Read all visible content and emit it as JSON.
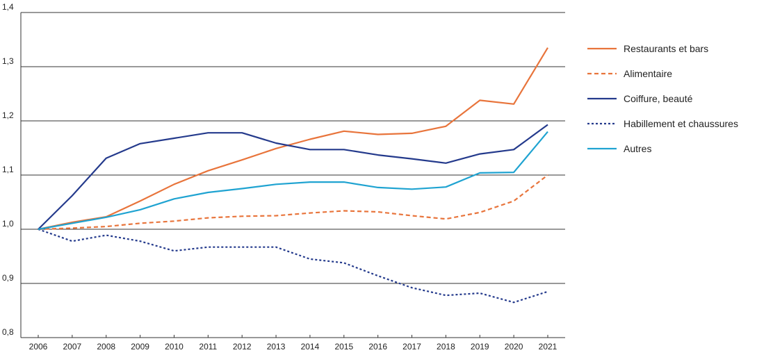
{
  "chart_data": {
    "type": "line",
    "title": "",
    "xlabel": "",
    "ylabel": "",
    "x": [
      "2006",
      "2007",
      "2008",
      "2009",
      "2010",
      "2011",
      "2012",
      "2013",
      "2014",
      "2015",
      "2016",
      "2017",
      "2018",
      "2019",
      "2020",
      "2021"
    ],
    "ylim": [
      0.8,
      1.4
    ],
    "yticks": [
      0.8,
      0.9,
      1.0,
      1.1,
      1.2,
      1.3,
      1.4
    ],
    "ytick_labels": [
      "0,8",
      "0,9",
      "1,0",
      "1,1",
      "1,2",
      "1,3",
      "1,4"
    ],
    "grid": "horizontal",
    "legend_position": "right",
    "series": [
      {
        "name": "Restaurants et bars",
        "color": "#e8743b",
        "dash": "solid",
        "values": [
          1.0,
          1.013,
          1.023,
          1.052,
          1.083,
          1.108,
          1.128,
          1.149,
          1.166,
          1.181,
          1.175,
          1.177,
          1.19,
          1.238,
          1.231,
          1.335
        ]
      },
      {
        "name": "Alimentaire",
        "color": "#e8743b",
        "dash": "dashed",
        "values": [
          1.0,
          1.002,
          1.005,
          1.011,
          1.015,
          1.021,
          1.024,
          1.025,
          1.03,
          1.034,
          1.032,
          1.025,
          1.019,
          1.031,
          1.052,
          1.1
        ]
      },
      {
        "name": "Coiffure, beauté",
        "color": "#243a8c",
        "dash": "solid",
        "values": [
          1.0,
          1.062,
          1.131,
          1.158,
          1.168,
          1.178,
          1.178,
          1.159,
          1.147,
          1.147,
          1.137,
          1.13,
          1.122,
          1.139,
          1.147,
          1.193
        ]
      },
      {
        "name": "Habillement et chaussures",
        "color": "#243a8c",
        "dash": "dotted",
        "values": [
          1.0,
          0.978,
          0.989,
          0.978,
          0.96,
          0.967,
          0.967,
          0.967,
          0.945,
          0.938,
          0.914,
          0.892,
          0.878,
          0.882,
          0.865,
          0.885
        ]
      },
      {
        "name": "Autres",
        "color": "#1fa3d1",
        "dash": "solid",
        "values": [
          1.0,
          1.011,
          1.022,
          1.036,
          1.056,
          1.068,
          1.075,
          1.083,
          1.087,
          1.087,
          1.077,
          1.074,
          1.078,
          1.104,
          1.105,
          1.18
        ]
      }
    ]
  }
}
